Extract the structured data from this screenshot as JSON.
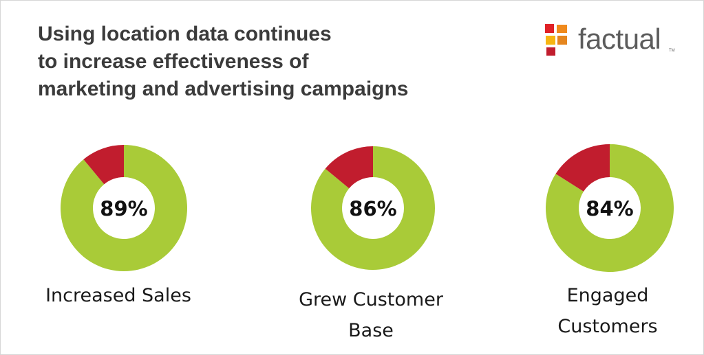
{
  "title_lines": [
    "Using location data continues",
    "to increase effectiveness of",
    "marketing and advertising campaigns"
  ],
  "logo": {
    "text": "factual",
    "tm": "TM"
  },
  "colors": {
    "positive": "#a9cb38",
    "negative": "#c11d2e",
    "title": "#3b3b3b"
  },
  "chart_data": {
    "type": "pie",
    "variant": "donut",
    "title": "Using location data continues to increase effectiveness of marketing and advertising campaigns",
    "charts": [
      {
        "value": 89,
        "display": "89%",
        "label_lines": [
          "Increased Sales"
        ]
      },
      {
        "value": 86,
        "display": "86%",
        "label_lines": [
          "Grew Customer",
          "Base"
        ]
      },
      {
        "value": 84,
        "display": "84%",
        "label_lines": [
          "Engaged",
          "Customers"
        ]
      }
    ]
  }
}
